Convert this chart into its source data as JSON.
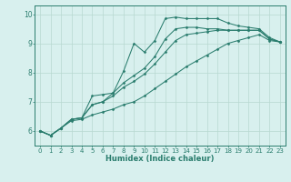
{
  "xlabel": "Humidex (Indice chaleur)",
  "bg_color": "#d8f0ee",
  "grid_color": "#b8d8d0",
  "line_color": "#2a7d6e",
  "xlim": [
    -0.5,
    23.5
  ],
  "ylim": [
    5.5,
    10.3
  ],
  "xticks": [
    0,
    1,
    2,
    3,
    4,
    5,
    6,
    7,
    8,
    9,
    10,
    11,
    12,
    13,
    14,
    15,
    16,
    17,
    18,
    19,
    20,
    21,
    22,
    23
  ],
  "yticks": [
    6,
    7,
    8,
    9,
    10
  ],
  "lines": [
    [
      6.0,
      5.85,
      6.1,
      6.4,
      6.45,
      7.2,
      7.25,
      7.3,
      8.05,
      9.0,
      8.7,
      9.1,
      9.85,
      9.9,
      9.85,
      9.85,
      9.85,
      9.85,
      9.7,
      9.6,
      9.55,
      9.5,
      9.2,
      9.05
    ],
    [
      6.0,
      5.85,
      6.1,
      6.4,
      6.45,
      6.9,
      7.0,
      7.3,
      7.65,
      7.9,
      8.15,
      8.55,
      9.15,
      9.5,
      9.55,
      9.55,
      9.5,
      9.5,
      9.45,
      9.45,
      9.45,
      9.45,
      9.15,
      9.05
    ],
    [
      6.0,
      5.85,
      6.1,
      6.4,
      6.45,
      6.9,
      7.0,
      7.2,
      7.5,
      7.7,
      7.95,
      8.3,
      8.7,
      9.1,
      9.3,
      9.35,
      9.4,
      9.45,
      9.45,
      9.45,
      9.45,
      9.45,
      9.15,
      9.05
    ],
    [
      6.0,
      5.85,
      6.1,
      6.35,
      6.4,
      6.55,
      6.65,
      6.75,
      6.9,
      7.0,
      7.2,
      7.45,
      7.7,
      7.95,
      8.2,
      8.4,
      8.6,
      8.8,
      9.0,
      9.1,
      9.2,
      9.3,
      9.1,
      9.05
    ]
  ],
  "tick_fontsize": 5.0,
  "xlabel_fontsize": 6.0,
  "marker_size": 1.5,
  "linewidth": 0.75
}
